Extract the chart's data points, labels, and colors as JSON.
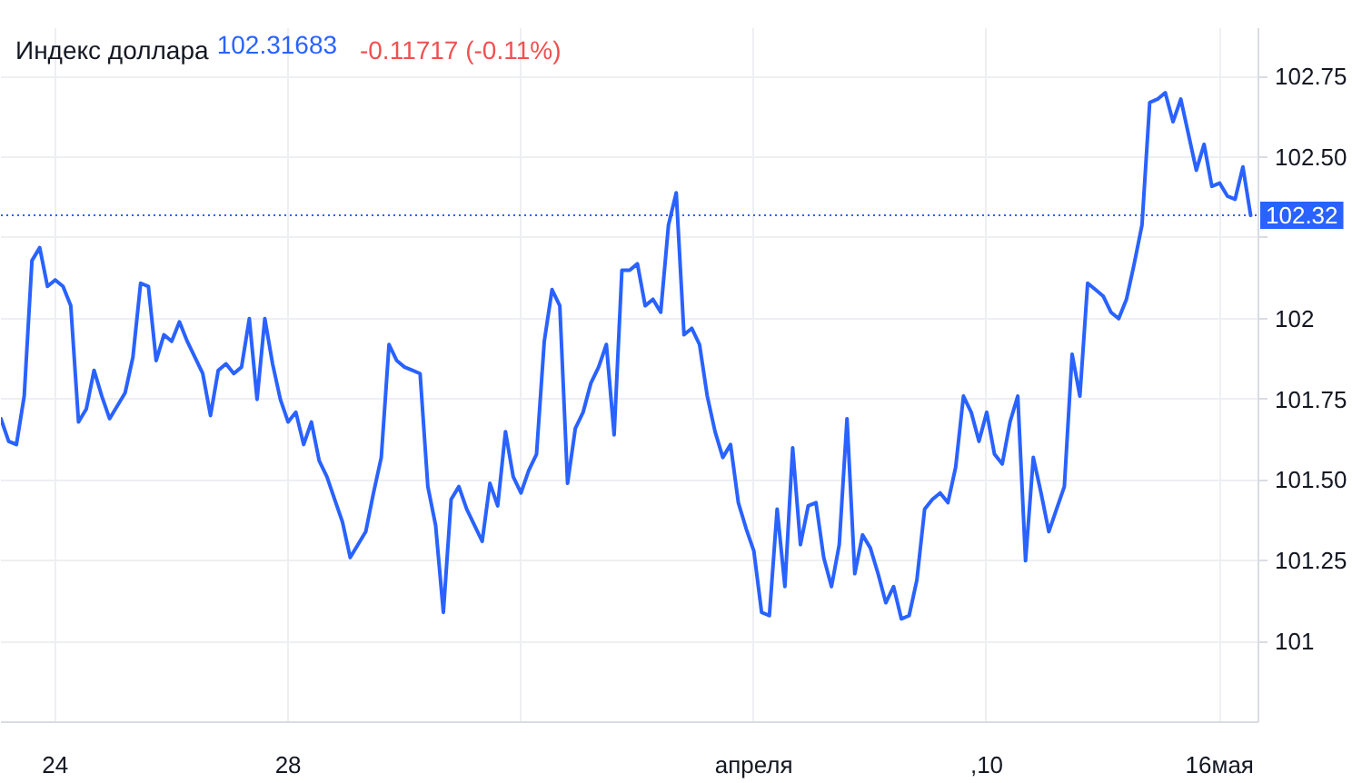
{
  "chart_data": {
    "type": "line",
    "title": "Индекс доллара",
    "annotations": [
      "102.31683",
      "-0.11717 (-0.11%)"
    ],
    "categories": [
      null,
      null,
      null,
      null,
      null,
      null,
      null,
      "24",
      null,
      null,
      null,
      null,
      null,
      null,
      null,
      null,
      null,
      null,
      null,
      null,
      null,
      null,
      null,
      null,
      null,
      null,
      null,
      null,
      null,
      null,
      null,
      null,
      null,
      null,
      null,
      null,
      null,
      "28",
      null,
      null,
      null,
      null,
      null,
      null,
      null,
      null,
      null,
      null,
      null,
      null,
      null,
      null,
      null,
      null,
      null,
      null,
      null,
      null,
      null,
      null,
      null,
      null,
      null,
      null,
      null,
      null,
      null,
      null,
      null,
      null,
      null,
      null,
      null,
      null,
      null,
      null,
      null,
      null,
      null,
      null,
      null,
      null,
      null,
      null,
      null,
      null,
      null,
      null,
      null,
      null,
      null,
      null,
      null,
      null,
      null,
      null,
      null,
      "апреля",
      null,
      null,
      null,
      null,
      null,
      null,
      null,
      null,
      null,
      null,
      null,
      null,
      null,
      null,
      null,
      null,
      null,
      null,
      null,
      null,
      null,
      null,
      null,
      null,
      null,
      null,
      null,
      null,
      null,
      ",10",
      null,
      null,
      null,
      null,
      null,
      null,
      null,
      null,
      null,
      null,
      null,
      null,
      null,
      null,
      null,
      null,
      null,
      null,
      null,
      null,
      null,
      null,
      null,
      null,
      null,
      null,
      null,
      null,
      null,
      "16мая",
      null,
      null,
      null,
      null
    ],
    "series": [
      {
        "color": "#2962ff",
        "values": [
          101.69,
          101.62,
          101.61,
          101.76,
          102.18,
          102.22,
          102.1,
          102.12,
          102.1,
          102.04,
          101.68,
          101.72,
          101.84,
          101.76,
          101.69,
          101.73,
          101.77,
          101.88,
          102.11,
          102.1,
          101.87,
          101.95,
          101.93,
          101.99,
          101.93,
          101.88,
          101.83,
          101.7,
          101.84,
          101.86,
          101.83,
          101.85,
          102.0,
          101.75,
          102.0,
          101.86,
          101.75,
          101.68,
          101.71,
          101.61,
          101.68,
          101.56,
          101.51,
          101.44,
          101.37,
          101.26,
          101.3,
          101.34,
          101.46,
          101.57,
          101.92,
          101.87,
          101.85,
          101.84,
          101.83,
          101.48,
          101.36,
          101.09,
          101.44,
          101.48,
          101.41,
          101.36,
          101.31,
          101.49,
          101.42,
          101.65,
          101.51,
          101.46,
          101.53,
          101.58,
          101.93,
          102.09,
          102.04,
          101.49,
          101.66,
          101.71,
          101.8,
          101.85,
          101.92,
          101.64,
          102.15,
          102.15,
          102.17,
          102.04,
          102.06,
          102.02,
          102.29,
          102.39,
          101.95,
          101.97,
          101.92,
          101.76,
          101.65,
          101.57,
          101.61,
          101.43,
          101.35,
          101.28,
          101.09,
          101.08,
          101.41,
          101.17,
          101.6,
          101.3,
          101.42,
          101.43,
          101.26,
          101.17,
          101.3,
          101.69,
          101.21,
          101.33,
          101.29,
          101.21,
          101.12,
          101.17,
          101.07,
          101.08,
          101.19,
          101.41,
          101.44,
          101.46,
          101.43,
          101.54,
          101.76,
          101.71,
          101.62,
          101.71,
          101.58,
          101.55,
          101.68,
          101.76,
          101.25,
          101.57,
          101.46,
          101.34,
          101.41,
          101.48,
          101.89,
          101.76,
          102.11,
          102.09,
          102.07,
          102.02,
          102.0,
          102.06,
          102.17,
          102.29,
          102.67,
          102.68,
          102.7,
          102.61,
          102.68,
          102.57,
          102.46,
          102.54,
          102.41,
          102.42,
          102.38,
          102.37,
          102.47,
          102.32
        ]
      }
    ],
    "ylim": [
      100.75,
      102.9
    ],
    "yticks": [
      101,
      101.25,
      {
        "value": 101.5,
        "label": "101.50"
      },
      101.75,
      102,
      {
        "value": 102.25,
        "label": null
      },
      {
        "value": 102.5,
        "label": "102.50"
      },
      102.75
    ],
    "grid": true,
    "ref_lines": [
      {
        "axis": "y",
        "value": 102.32,
        "label": "102.32",
        "color": "#2962ff",
        "line_style": "dotted"
      }
    ]
  }
}
